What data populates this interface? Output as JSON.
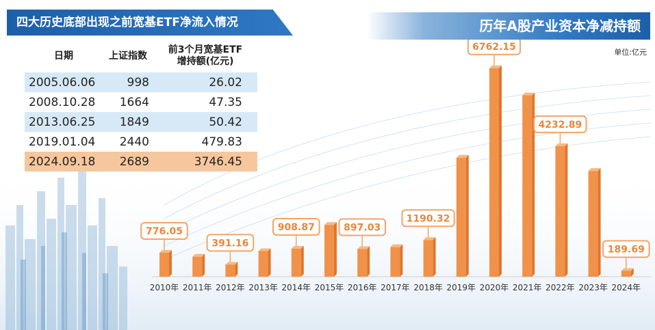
{
  "table": {
    "title": "四大历史底部出现之前宽基ETF净流入情况",
    "headers": [
      "日期",
      "上证指数",
      "前3个月宽基ETF\n增持额(亿元)"
    ],
    "rows": [
      {
        "date": "2005.06.06",
        "index": "998",
        "amount": "26.02"
      },
      {
        "date": "2008.10.28",
        "index": "1664",
        "amount": "47.35"
      },
      {
        "date": "2013.06.25",
        "index": "1849",
        "amount": "50.42"
      },
      {
        "date": "2019.01.04",
        "index": "2440",
        "amount": "479.83"
      },
      {
        "date": "2024.09.18",
        "index": "2689",
        "amount": "3746.45"
      }
    ]
  },
  "colors": {
    "bar": "#f0924a",
    "bar_dark": "#e0762a",
    "label_border": "#f3a468",
    "label_text": "#e8873c",
    "table_blue": "#d7e9f7",
    "table_orange": "#f6c79c",
    "title_blue": "#2f78c4"
  },
  "chart_data": {
    "type": "bar",
    "title": "历年A股产业资本净减持额",
    "unit": "单位:亿元",
    "categories": [
      "2010年",
      "2011年",
      "2012年",
      "2013年",
      "2014年",
      "2015年",
      "2016年",
      "2017年",
      "2018年",
      "2019年",
      "2020年",
      "2021年",
      "2022年",
      "2023年",
      "2024年"
    ],
    "values": [
      776.05,
      650,
      391.16,
      830,
      908.87,
      1680,
      897.03,
      960,
      1190.32,
      3860,
      6762.15,
      5880,
      4232.89,
      3430,
      189.69
    ],
    "labels": [
      "776.05",
      "",
      "391.16",
      "",
      "908.87",
      "",
      "897.03",
      "",
      "1190.32",
      "",
      "6762.15",
      "",
      "4232.89",
      "",
      "189.69"
    ],
    "ylim": [
      0,
      7200
    ]
  }
}
